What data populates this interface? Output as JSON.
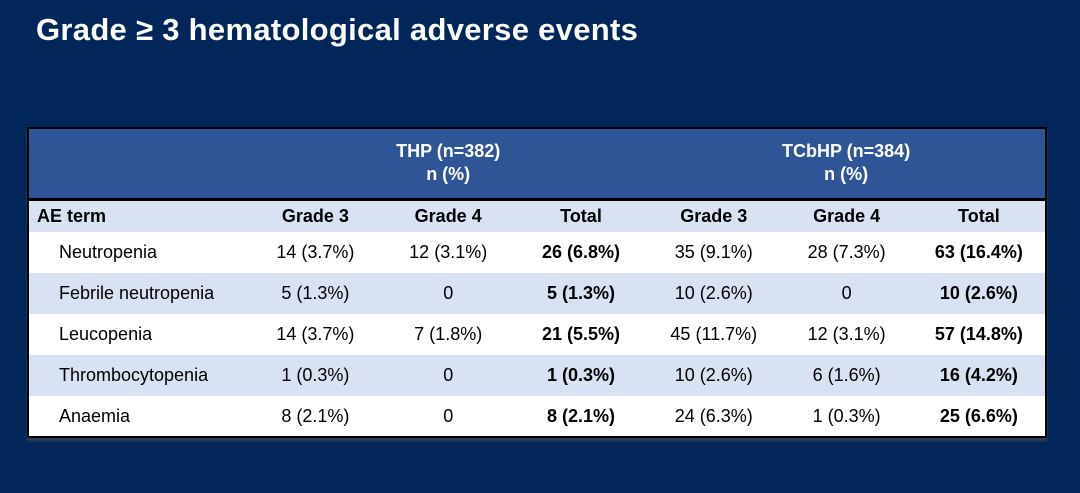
{
  "title": "Grade ≥ 3 hematological adverse events",
  "colors": {
    "navy": "#022659",
    "header-blue": "#2f5596",
    "light-row": "#d9e2f3",
    "border-black": "#000000",
    "title-white": "#ffffff"
  },
  "table": {
    "group_headers": [
      {
        "line1": "THP (n=382)",
        "line2": "n (%)"
      },
      {
        "line1": "TCbHP (n=384)",
        "line2": "n (%)"
      }
    ],
    "columns": [
      "AE term",
      "Grade 3",
      "Grade 4",
      "Total",
      "Grade 3",
      "Grade 4",
      "Total"
    ],
    "rows": [
      {
        "cells": [
          "Neutropenia",
          "14 (3.7%)",
          "12 (3.1%)",
          "26 (6.8%)",
          "35 (9.1%)",
          "28 (7.3%)",
          "63 (16.4%)"
        ]
      },
      {
        "cells": [
          "Febrile neutropenia",
          "5 (1.3%)",
          "0",
          "5 (1.3%)",
          "10 (2.6%)",
          "0",
          "10 (2.6%)"
        ]
      },
      {
        "cells": [
          "Leucopenia",
          "14 (3.7%)",
          "7 (1.8%)",
          "21 (5.5%)",
          "45 (11.7%)",
          "12 (3.1%)",
          "57 (14.8%)"
        ]
      },
      {
        "cells": [
          "Thrombocytopenia",
          "1 (0.3%)",
          "0",
          "1 (0.3%)",
          "10 (2.6%)",
          "6 (1.6%)",
          "16 (4.2%)"
        ]
      },
      {
        "cells": [
          "Anaemia",
          "8 (2.1%)",
          "0",
          "8 (2.1%)",
          "24 (6.3%)",
          "1 (0.3%)",
          "25 (6.6%)"
        ]
      }
    ]
  }
}
